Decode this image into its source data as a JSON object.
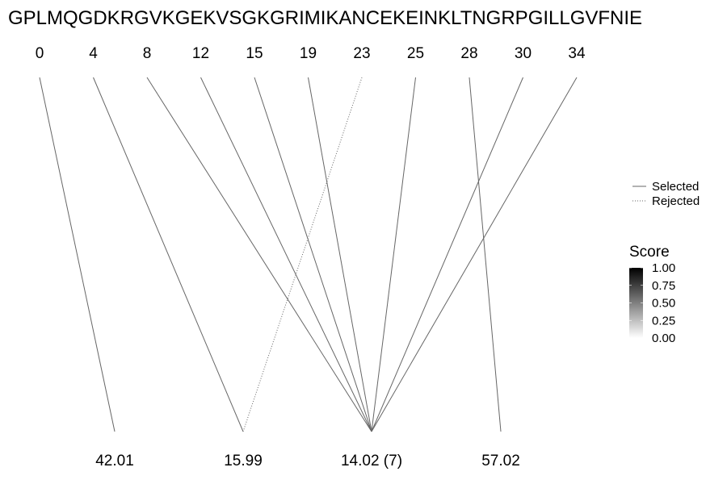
{
  "sequence": "GPLMQGDKRGVKGEKVSGKGRIMIKANCEKEINKLTNGRPGILLGVFNIE",
  "top_positions": [
    "0",
    "4",
    "8",
    "12",
    "15",
    "19",
    "23",
    "25",
    "28",
    "30",
    "34"
  ],
  "bottom_labels": [
    "42.01",
    "15.99",
    "14.02 (7)",
    "57.02"
  ],
  "links": [
    {
      "from": "0",
      "to": "42.01",
      "status": "selected"
    },
    {
      "from": "4",
      "to": "15.99",
      "status": "selected"
    },
    {
      "from": "23",
      "to": "15.99",
      "status": "rejected"
    },
    {
      "from": "8",
      "to": "14.02 (7)",
      "status": "selected"
    },
    {
      "from": "12",
      "to": "14.02 (7)",
      "status": "selected"
    },
    {
      "from": "15",
      "to": "14.02 (7)",
      "status": "selected"
    },
    {
      "from": "19",
      "to": "14.02 (7)",
      "status": "selected"
    },
    {
      "from": "25",
      "to": "14.02 (7)",
      "status": "selected"
    },
    {
      "from": "30",
      "to": "14.02 (7)",
      "status": "selected"
    },
    {
      "from": "34",
      "to": "14.02 (7)",
      "status": "selected"
    },
    {
      "from": "28",
      "to": "57.02",
      "status": "selected"
    }
  ],
  "legend": {
    "linetype": [
      {
        "label": "Selected",
        "style": "solid"
      },
      {
        "label": "Rejected",
        "style": "dotted"
      }
    ],
    "score": {
      "title": "Score",
      "ticks": [
        "1.00",
        "0.75",
        "0.50",
        "0.25",
        "0.00"
      ],
      "color_high": "#000000",
      "color_low": "#ffffff"
    }
  },
  "colors": {
    "line": "#666666"
  }
}
